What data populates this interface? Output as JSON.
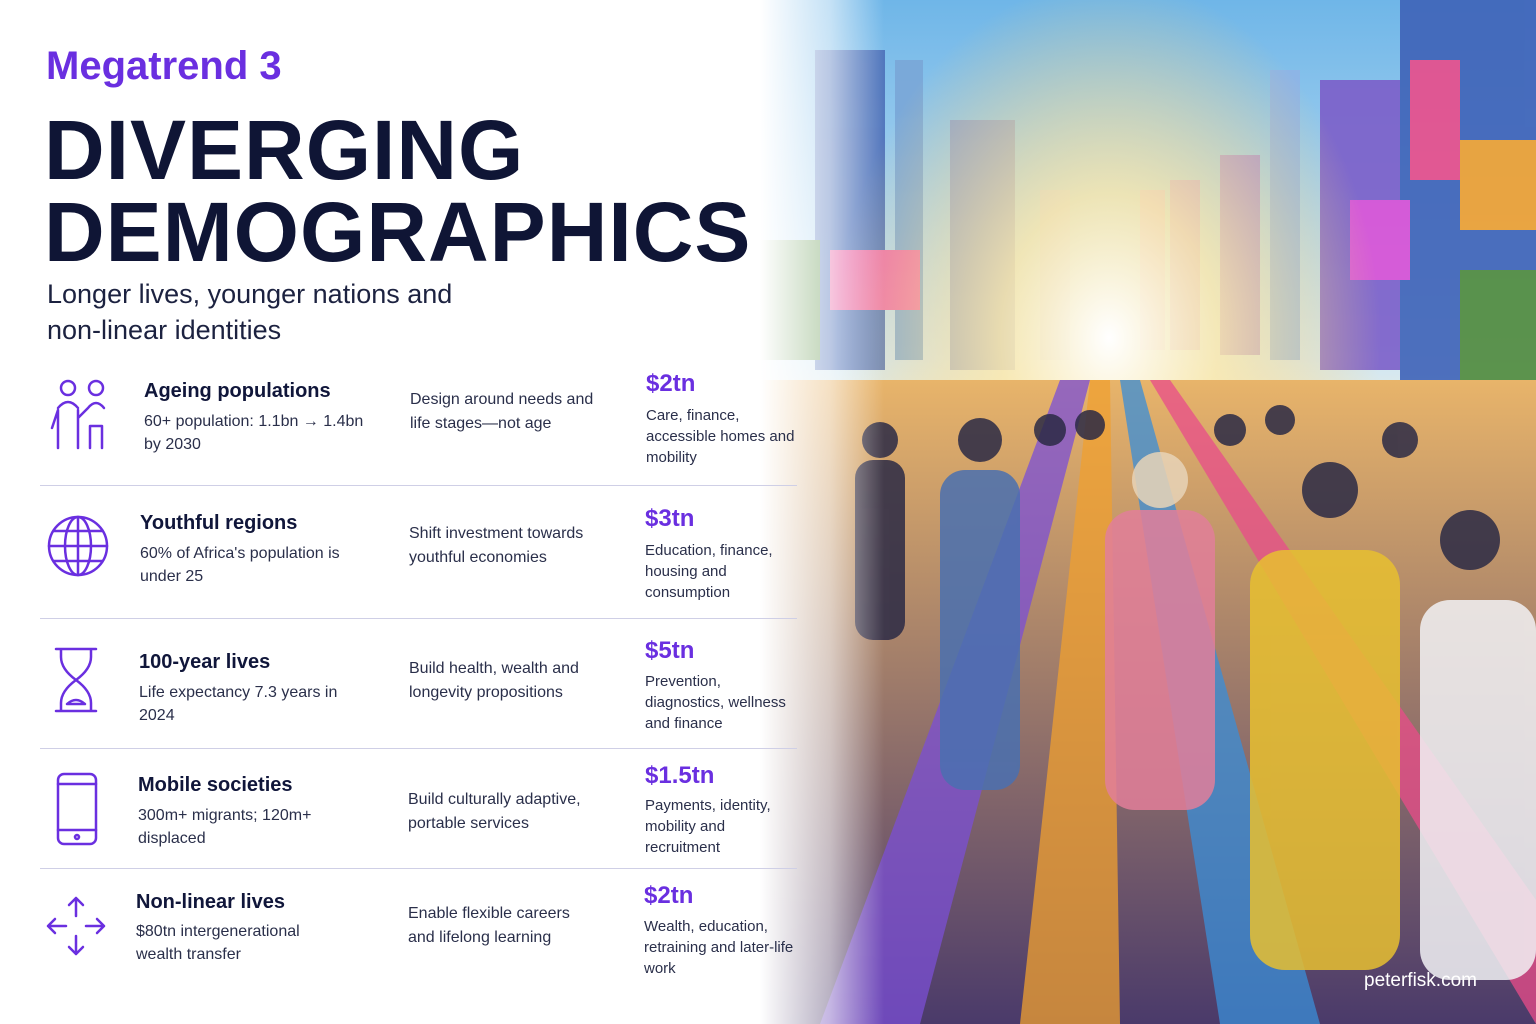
{
  "header": {
    "kicker": "Megatrend 3",
    "title_lines": [
      "DIVERGING",
      "DEMOGRAPHICS"
    ],
    "subtitle": "Longer lives, younger nations and non-linear identities"
  },
  "rows": [
    {
      "title": "Ageing populations",
      "stat": "60+ population: 1.1bn → 1.4bn by 2030",
      "action": "Design around needs and life stages—not age",
      "value": "$2tn",
      "value_desc": "Care, finance, accessible homes and mobility"
    },
    {
      "title": "Youthful regions",
      "stat": "60% of Africa's population is under 25",
      "action": "Shift investment towards youthful economies",
      "value": "$3tn",
      "value_desc": "Education, finance, housing and consumption"
    },
    {
      "title": "100-year lives",
      "stat": "Life expectancy 7.3 years in 2024",
      "action": "Build health, wealth and longevity propositions",
      "value": "$5tn",
      "value_desc": "Prevention, diagnostics, wellness and finance"
    },
    {
      "title": "Mobile societies",
      "stat": "300m+ migrants; 120m+ displaced",
      "action": "Build culturally adaptive, portable services",
      "value": "$1.5tn",
      "value_desc": "Payments, identity, mobility and recruitment"
    },
    {
      "title": "Non-linear lives",
      "stat": "$80tn intergenerational wealth transfer",
      "action": "Enable flexible careers and lifelong learning",
      "value": "$2tn",
      "value_desc": "Wealth, education, retraining and later-life work"
    }
  ],
  "footer": "peterfisk.com"
}
